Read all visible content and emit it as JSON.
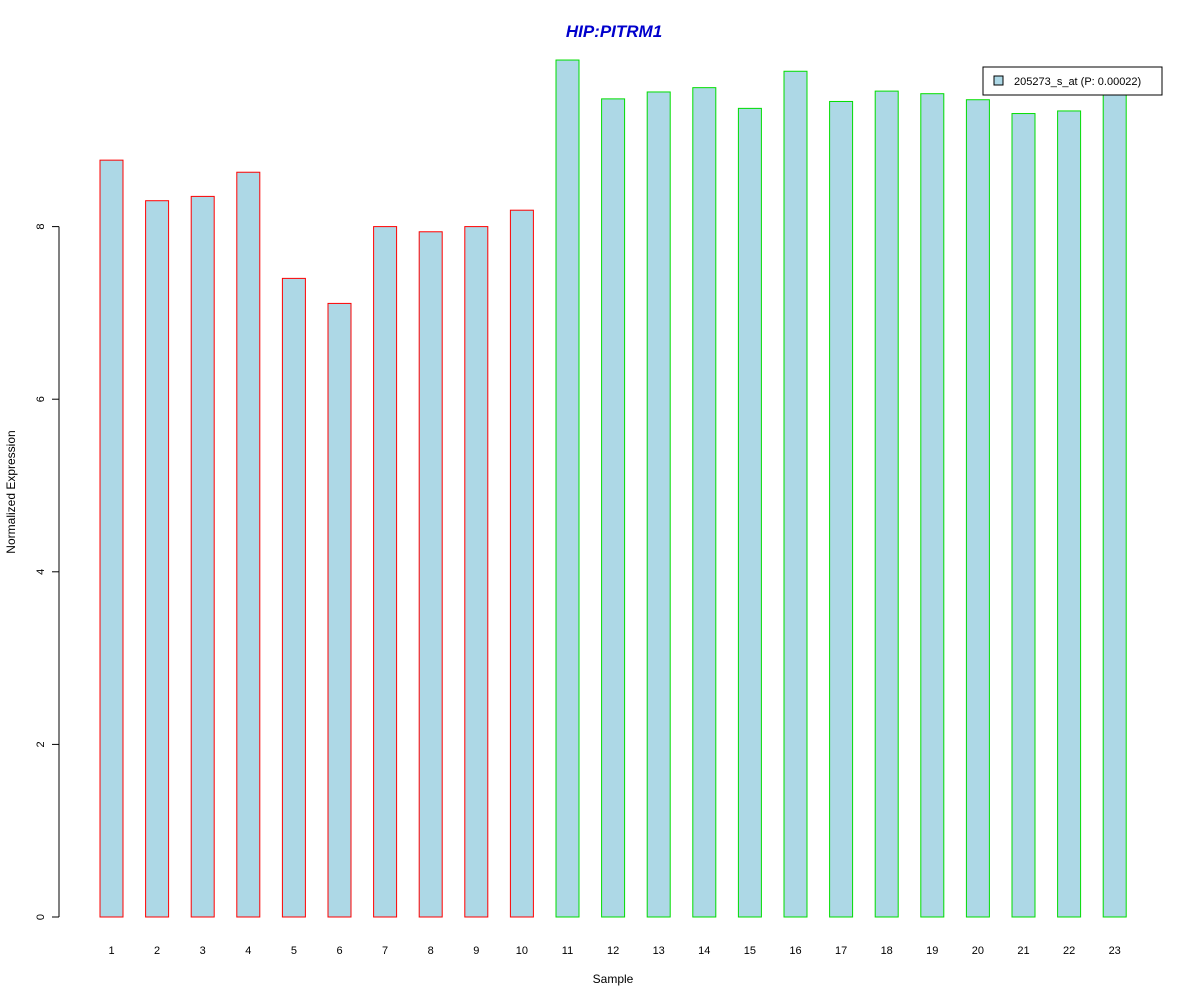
{
  "colors": {
    "title": "#0000CC",
    "bar_fill": "#ADD8E6",
    "group_a_border": "#FF0000",
    "group_b_border": "#00DD00",
    "axis": "#000000"
  },
  "chart_data": {
    "type": "bar",
    "title": "HIP:PITRM1",
    "xlabel": "Sample",
    "ylabel": "Normalized Expression",
    "ylim": [
      0,
      10
    ],
    "y_ticks": [
      0,
      2,
      4,
      6,
      8
    ],
    "categories": [
      "1",
      "2",
      "3",
      "4",
      "5",
      "6",
      "7",
      "8",
      "9",
      "10",
      "11",
      "12",
      "13",
      "14",
      "15",
      "16",
      "17",
      "18",
      "19",
      "20",
      "21",
      "22",
      "23"
    ],
    "series": [
      {
        "name": "205273_s_at (P: 0.00022)",
        "values": [
          8.77,
          8.3,
          8.35,
          8.63,
          7.4,
          7.11,
          8.0,
          7.94,
          8.0,
          8.19,
          9.93,
          9.48,
          9.56,
          9.61,
          9.37,
          9.8,
          9.45,
          9.57,
          9.54,
          9.47,
          9.31,
          9.34,
          9.55
        ],
        "border_groups": [
          "a",
          "a",
          "a",
          "a",
          "a",
          "a",
          "a",
          "a",
          "a",
          "a",
          "b",
          "b",
          "b",
          "b",
          "b",
          "b",
          "b",
          "b",
          "b",
          "b",
          "b",
          "b",
          "b"
        ]
      }
    ],
    "legend": {
      "position": "top-right",
      "label": "205273_s_at (P: 0.00022)"
    }
  }
}
